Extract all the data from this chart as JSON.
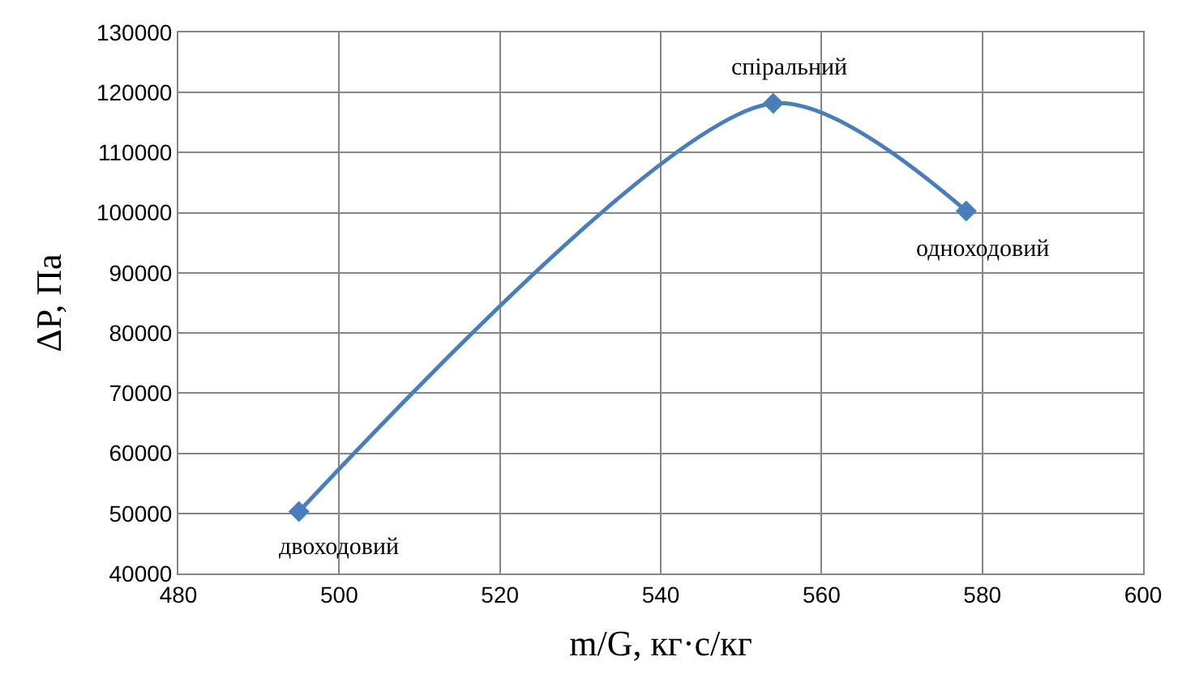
{
  "chart_data": {
    "type": "line",
    "xlabel": "m/G, кг·с/кг",
    "ylabel": "ΔP, Па",
    "series": [
      {
        "color": "#4a7ebb",
        "x": [
          495,
          554,
          578
        ],
        "values": [
          50300,
          118200,
          100300
        ]
      }
    ],
    "xlim": [
      480,
      600
    ],
    "xticks": [
      480,
      500,
      520,
      540,
      560,
      580,
      600
    ],
    "ylim": [
      40000,
      130000
    ],
    "yticks": [
      40000,
      50000,
      60000,
      70000,
      80000,
      90000,
      100000,
      110000,
      120000,
      130000
    ],
    "grid": true,
    "marker": "diamond",
    "line_style": "solid",
    "legend": false,
    "annotations": [
      {
        "text": "двоходовий",
        "x": 495,
        "y": 50300
      },
      {
        "text": "спіральний",
        "x": 554,
        "y": 118200
      },
      {
        "text": "одноходовий",
        "x": 578,
        "y": 100300
      }
    ]
  }
}
